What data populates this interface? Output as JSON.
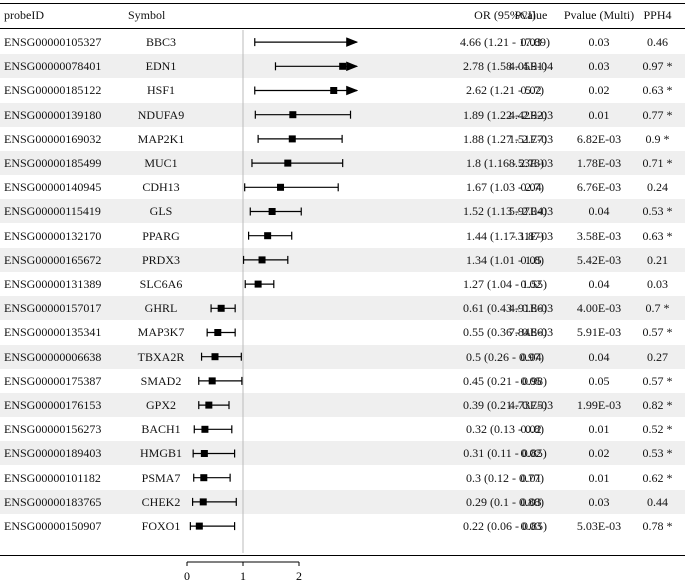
{
  "chart_data": {
    "type": "forest",
    "columns": {
      "probe_id": "probeID",
      "symbol": "Symbol",
      "or_ci": "OR (95%CI)",
      "pvalue": "Pvalue",
      "pvalue_multi": "Pvalue (Multi)",
      "pph4": "PPH4"
    },
    "x_ticks": [
      "0",
      "1",
      "2"
    ],
    "reference_line": 1,
    "rows": [
      {
        "probe": "ENSG00000105327",
        "symbol": "BBC3",
        "or": 4.66,
        "lo": 1.21,
        "hi": 17.89,
        "arrow": true,
        "or_text": "4.66 (1.21 - 17.89)",
        "p": "0.03",
        "pm": "0.03",
        "pph4": "0.46"
      },
      {
        "probe": "ENSG00000078401",
        "symbol": "EDN1",
        "or": 2.78,
        "lo": 1.58,
        "hi": 4.91,
        "arrow": true,
        "or_text": "2.78 (1.58 - 4.91)",
        "p": "4.05E-04",
        "pm": "0.03",
        "pph4": "0.97 *"
      },
      {
        "probe": "ENSG00000185122",
        "symbol": "HSF1",
        "or": 2.62,
        "lo": 1.21,
        "hi": 5.7,
        "arrow": true,
        "or_text": "2.62 (1.21 - 5.7)",
        "p": "0.02",
        "pm": "0.02",
        "pph4": "0.63 *"
      },
      {
        "probe": "ENSG00000139180",
        "symbol": "NDUFA9",
        "or": 1.89,
        "lo": 1.22,
        "hi": 2.92,
        "arrow": false,
        "or_text": "1.89 (1.22 - 2.92)",
        "p": "4.42E-03",
        "pm": "0.01",
        "pph4": "0.77 *"
      },
      {
        "probe": "ENSG00000169032",
        "symbol": "MAP2K1",
        "or": 1.88,
        "lo": 1.27,
        "hi": 2.77,
        "arrow": false,
        "or_text": "1.88 (1.27 - 2.77)",
        "p": "1.51E-03",
        "pm": "6.82E-03",
        "pph4": "0.9 *"
      },
      {
        "probe": "ENSG00000185499",
        "symbol": "MUC1",
        "or": 1.8,
        "lo": 1.16,
        "hi": 2.78,
        "arrow": false,
        "or_text": "1.8 (1.16 - 2.78)",
        "p": "8.53E-03",
        "pm": "1.78E-03",
        "pph4": "0.71 *"
      },
      {
        "probe": "ENSG00000140945",
        "symbol": "CDH13",
        "or": 1.67,
        "lo": 1.03,
        "hi": 2.7,
        "arrow": false,
        "or_text": "1.67 (1.03 - 2.7)",
        "p": "0.04",
        "pm": "6.76E-03",
        "pph4": "0.24"
      },
      {
        "probe": "ENSG00000115419",
        "symbol": "GLS",
        "or": 1.52,
        "lo": 1.13,
        "hi": 2.04,
        "arrow": false,
        "or_text": "1.52 (1.13 - 2.04)",
        "p": "5.97E-03",
        "pm": "0.04",
        "pph4": "0.53 *"
      },
      {
        "probe": "ENSG00000132170",
        "symbol": "PPARG",
        "or": 1.44,
        "lo": 1.1,
        "hi": 1.87,
        "arrow": false,
        "or_text": "1.44 (1.1 - 1.87)",
        "p": "7.31E-03",
        "pm": "3.58E-03",
        "pph4": "0.63 *"
      },
      {
        "probe": "ENSG00000165672",
        "symbol": "PRDX3",
        "or": 1.34,
        "lo": 1.01,
        "hi": 1.8,
        "arrow": false,
        "or_text": "1.34 (1.01 - 1.8)",
        "p": "0.05",
        "pm": "5.42E-03",
        "pph4": "0.21"
      },
      {
        "probe": "ENSG00000131389",
        "symbol": "SLC6A6",
        "or": 1.27,
        "lo": 1.04,
        "hi": 1.55,
        "arrow": false,
        "or_text": "1.27 (1.04 - 1.55)",
        "p": "0.02",
        "pm": "0.04",
        "pph4": "0.03"
      },
      {
        "probe": "ENSG00000157017",
        "symbol": "GHRL",
        "or": 0.61,
        "lo": 0.43,
        "hi": 0.86,
        "arrow": false,
        "or_text": "0.61 (0.43 - 0.86)",
        "p": "4.91E-03",
        "pm": "4.00E-03",
        "pph4": "0.7 *"
      },
      {
        "probe": "ENSG00000135341",
        "symbol": "MAP3K7",
        "or": 0.55,
        "lo": 0.36,
        "hi": 0.86,
        "arrow": false,
        "or_text": "0.55 (0.36 - 0.86)",
        "p": "7.84E-03",
        "pm": "5.91E-03",
        "pph4": "0.57 *"
      },
      {
        "probe": "ENSG00000006638",
        "symbol": "TBXA2R",
        "or": 0.5,
        "lo": 0.26,
        "hi": 0.97,
        "arrow": false,
        "or_text": "0.5 (0.26 - 0.97)",
        "p": "0.04",
        "pm": "0.04",
        "pph4": "0.27"
      },
      {
        "probe": "ENSG00000175387",
        "symbol": "SMAD2",
        "or": 0.45,
        "lo": 0.21,
        "hi": 0.98,
        "arrow": false,
        "or_text": "0.45 (0.21 - 0.98)",
        "p": "0.05",
        "pm": "0.05",
        "pph4": "0.57 *"
      },
      {
        "probe": "ENSG00000176153",
        "symbol": "GPX2",
        "or": 0.39,
        "lo": 0.21,
        "hi": 0.75,
        "arrow": false,
        "or_text": "0.39 (0.21 - 0.75)",
        "p": "4.73E-03",
        "pm": "1.99E-03",
        "pph4": "0.82 *"
      },
      {
        "probe": "ENSG00000156273",
        "symbol": "BACH1",
        "or": 0.32,
        "lo": 0.13,
        "hi": 0.8,
        "arrow": false,
        "or_text": "0.32 (0.13 - 0.8)",
        "p": "0.02",
        "pm": "0.01",
        "pph4": "0.52 *"
      },
      {
        "probe": "ENSG00000189403",
        "symbol": "HMGB1",
        "or": 0.31,
        "lo": 0.11,
        "hi": 0.85,
        "arrow": false,
        "or_text": "0.31 (0.11 - 0.85)",
        "p": "0.02",
        "pm": "0.02",
        "pph4": "0.53 *"
      },
      {
        "probe": "ENSG00000101182",
        "symbol": "PSMA7",
        "or": 0.3,
        "lo": 0.12,
        "hi": 0.77,
        "arrow": false,
        "or_text": "0.3 (0.12 - 0.77)",
        "p": "0.01",
        "pm": "0.01",
        "pph4": "0.62 *"
      },
      {
        "probe": "ENSG00000183765",
        "symbol": "CHEK2",
        "or": 0.29,
        "lo": 0.1,
        "hi": 0.88,
        "arrow": false,
        "or_text": "0.29 (0.1 - 0.88)",
        "p": "0.03",
        "pm": "0.03",
        "pph4": "0.44"
      },
      {
        "probe": "ENSG00000150907",
        "symbol": "FOXO1",
        "or": 0.22,
        "lo": 0.06,
        "hi": 0.85,
        "arrow": false,
        "or_text": "0.22 (0.06 - 0.85)",
        "p": "0.03",
        "pm": "5.03E-03",
        "pph4": "0.78 *"
      }
    ]
  }
}
